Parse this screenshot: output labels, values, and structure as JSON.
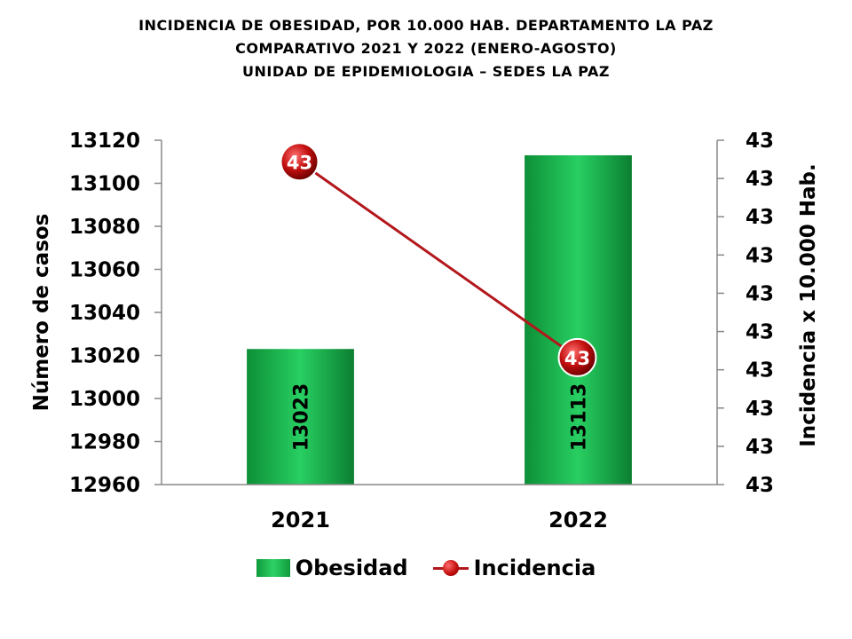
{
  "title_lines": [
    "INCIDENCIA DE OBESIDAD, POR 10.000 HAB. DEPARTAMENTO LA PAZ",
    "COMPARATIVO 2021 Y 2022 (ENERO-AGOSTO)",
    "UNIDAD DE EPIDEMIOLOGIA – SEDES LA PAZ"
  ],
  "chart_data": {
    "type": "bar",
    "categories": [
      "2021",
      "2022"
    ],
    "series": [
      {
        "name": "Obesidad",
        "type": "bar",
        "axis": "left",
        "values": [
          13023,
          13113
        ],
        "labels": [
          "13023",
          "13113"
        ],
        "color": "#1cb34c"
      },
      {
        "name": "Incidencia",
        "type": "line",
        "axis": "right",
        "values": [
          43,
          43
        ],
        "labels": [
          "43",
          "43"
        ],
        "color": "#b3171c"
      }
    ],
    "ylabel": "Número de casos",
    "y2label": "Incidencia x 10.000 Hab.",
    "ylim": [
      12960,
      13120
    ],
    "yticks": [
      "13120",
      "13100",
      "13080",
      "13060",
      "13040",
      "13020",
      "13000",
      "12980",
      "12960"
    ],
    "y2ticks": [
      "43",
      "43",
      "43",
      "43",
      "43",
      "43",
      "43",
      "43",
      "43",
      "43"
    ],
    "grid": false,
    "legend_position": "bottom"
  },
  "legend": {
    "bar_label": "Obesidad",
    "line_label": "Incidencia"
  }
}
